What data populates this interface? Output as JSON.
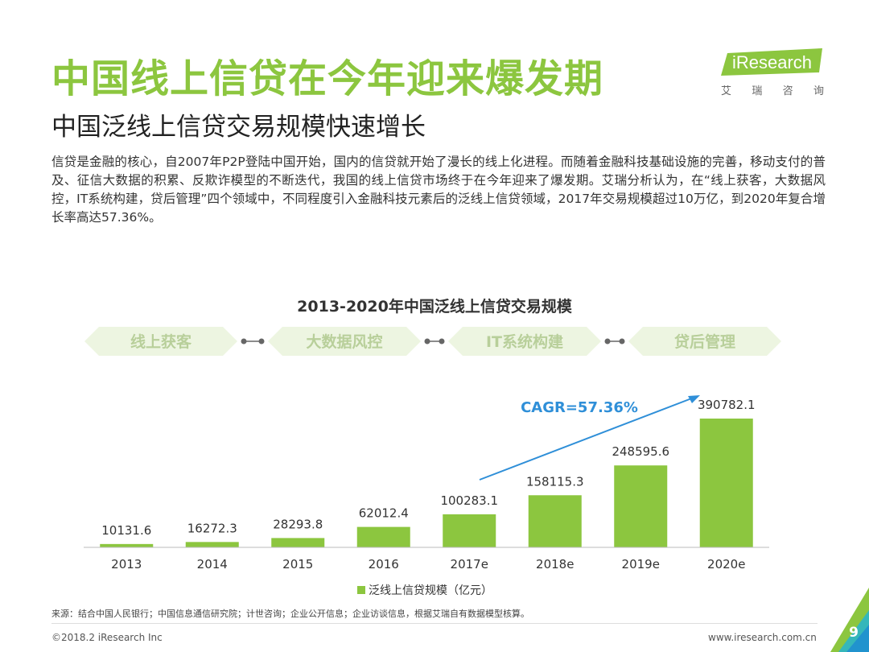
{
  "header": {
    "title": "中国线上信贷在今年迎来爆发期",
    "subtitle": "中国泛线上信贷交易规模快速增长"
  },
  "logo": {
    "name": "iResearch",
    "sub_chars": [
      "艾",
      "瑞",
      "咨",
      "询"
    ],
    "accent": "#8cc63f"
  },
  "body_text": "信贷是金融的核心，自2007年P2P登陆中国开始，国内的信贷就开始了漫长的线上化进程。而随着金融科技基础设施的完善，移动支付的普及、征信大数据的积累、反欺诈模型的不断迭代，我国的线上信贷市场终于在今年迎来了爆发期。艾瑞分析认为，在“线上获客，大数据风控，IT系统构建，贷后管理”四个领域中，不同程度引入金融科技元素后的泛线上信贷领域，2017年交易规模超过10万亿，到2020年复合增长率高达57.36%。",
  "process_steps": [
    "线上获客",
    "大数据风控",
    "IT系统构建",
    "贷后管理"
  ],
  "chart_data": {
    "type": "bar",
    "title": "2013-2020年中国泛线上信贷交易规模",
    "categories": [
      "2013",
      "2014",
      "2015",
      "2016",
      "2017e",
      "2018e",
      "2019e",
      "2020e"
    ],
    "series": [
      {
        "name": "泛线上信贷规模（亿元）",
        "values": [
          10131.6,
          16272.3,
          28293.8,
          62012.4,
          100283.1,
          158115.3,
          248595.6,
          390782.1
        ],
        "color": "#8cc63f"
      }
    ],
    "value_labels": [
      "10131.6",
      "16272.3",
      "28293.8",
      "62012.4",
      "100283.1",
      "158115.3",
      "248595.6",
      "390782.1"
    ],
    "annotation": "CAGR=57.36%",
    "annotation_color": "#2f8fd8",
    "ylim": [
      0,
      400000
    ],
    "grid": false,
    "legend": "bottom"
  },
  "source": "来源：结合中国人民银行；中国信息通信研究院；计世咨询；企业公开信息；企业访谈信息，根据艾瑞自有数据模型核算。",
  "footer": {
    "copyright": "©2018.2 iResearch Inc",
    "website": "www.iresearch.com.cn",
    "page": "9"
  }
}
